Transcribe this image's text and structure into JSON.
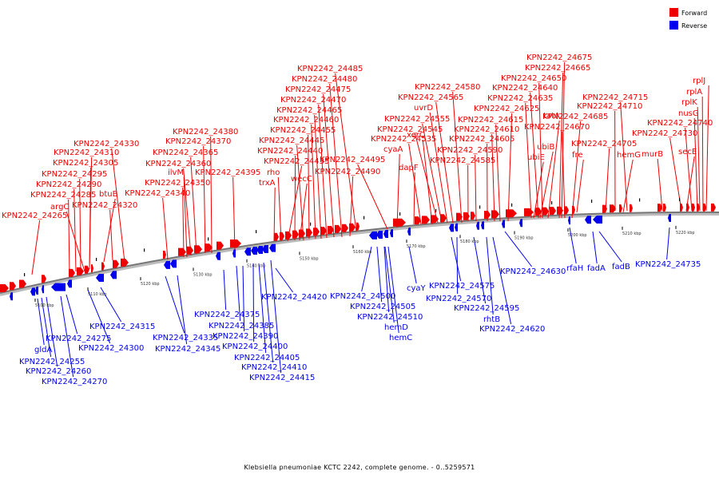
{
  "legend": {
    "forward": {
      "label": "Forward",
      "color": "#ee0000"
    },
    "reverse": {
      "label": "Reverse",
      "color": "#0000ee"
    }
  },
  "caption": "Klebsiella pneumoniae KCTC 2242, complete genome. - 0..5259571",
  "scale": {
    "ticks": [
      {
        "kbp": 5100,
        "label": "5100 kbp"
      },
      {
        "kbp": 5110,
        "label": "5110 kbp"
      },
      {
        "kbp": 5120,
        "label": "5120 kbp"
      },
      {
        "kbp": 5130,
        "label": "5130 kbp"
      },
      {
        "kbp": 5140,
        "label": "5140 kbp"
      },
      {
        "kbp": 5150,
        "label": "5150 kbp"
      },
      {
        "kbp": 5160,
        "label": "5160 kbp"
      },
      {
        "kbp": 5170,
        "label": "5170 kbp"
      },
      {
        "kbp": 5180,
        "label": "5180 kbp"
      },
      {
        "kbp": 5190,
        "label": "5190 kbp"
      },
      {
        "kbp": 5200,
        "label": "5200 kbp"
      },
      {
        "kbp": 5210,
        "label": "5210 kbp"
      },
      {
        "kbp": 5220,
        "label": "5220 kbp"
      }
    ]
  },
  "forward_genes": [
    "KPN2242_24265",
    "KPN2242_24285",
    "argC",
    "KPN2242_24290",
    "KPN2242_24295",
    "KPN2242_24305",
    "KPN2242_24310",
    "KPN2242_24320",
    "btuB",
    "KPN2242_24330",
    "KPN2242_24340",
    "KPN2242_24350",
    "ilvM",
    "KPN2242_24360",
    "KPN2242_24365",
    "KPN2242_24370",
    "KPN2242_24380",
    "KPN2242_24395",
    "trxA",
    "rho",
    "KPN2242_24435",
    "KPN2242_24440",
    "wecC",
    "KPN2242_24445",
    "KPN2242_24455",
    "KPN2242_24460",
    "KPN2242_24465",
    "KPN2242_24470",
    "KPN2242_24475",
    "KPN2242_24480",
    "KPN2242_24485",
    "KPN2242_24490",
    "KPN2242_24495",
    "cyaA",
    "dapF",
    "KPN2242_24535",
    "xerC",
    "KPN2242_24545",
    "KPN2242_24555",
    "uvrD",
    "KPN2242_24565",
    "KPN2242_24580",
    "KPN2242_24585",
    "KPN2242_24590",
    "KPN2242_24605",
    "KPN2242_24610",
    "KPN2242_24615",
    "KPN2242_24625",
    "ubiE",
    "ubiB",
    "KPN2242_24635",
    "KPN2242_24640",
    "KPN2242_24650",
    "tatA",
    "KPN2242_24665",
    "KPN2242_24670",
    "KPN2242_24675",
    "KPN2242_24685",
    "fre",
    "KPN2242_24705",
    "hemG",
    "KPN2242_24710",
    "KPN2242_24715",
    "murB",
    "KPN2242_24730",
    "secE",
    "KPN2242_24740",
    "nusG",
    "rplK",
    "rplA",
    "rplJ"
  ],
  "reverse_genes": [
    "gldA",
    "KPN2242_24255",
    "KPN2242_24260",
    "KPN2242_24270",
    "KPN2242_24275",
    "KPN2242_24300",
    "KPN2242_24315",
    "KPN2242_24335",
    "KPN2242_24345",
    "KPN2242_24375",
    "KPN2242_24385",
    "KPN2242_24390",
    "KPN2242_24400",
    "KPN2242_24405",
    "KPN2242_24410",
    "KPN2242_24415",
    "KPN2242_24420",
    "KPN2242_24500",
    "KPN2242_24505",
    "KPN2242_24510",
    "hemD",
    "hemC",
    "cyaY",
    "KPN2242_24575",
    "KPN2242_24570",
    "KPN2242_24595",
    "rhtB",
    "KPN2242_24620",
    "KPN2242_24630",
    "rfaH",
    "fadA",
    "fadB",
    "KPN2242_24735"
  ]
}
